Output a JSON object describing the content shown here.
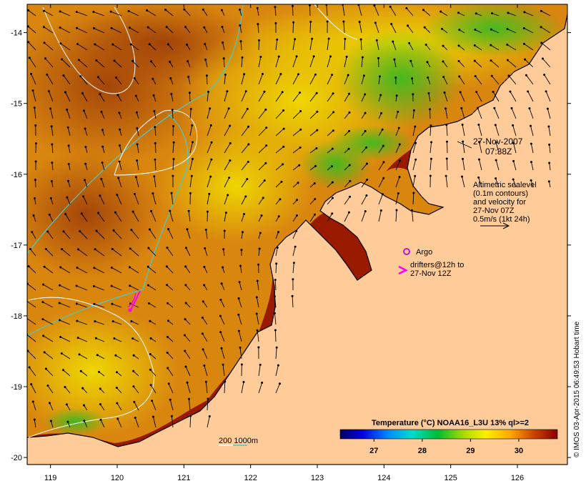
{
  "map": {
    "lon_ticks": [
      119,
      120,
      121,
      122,
      123,
      124,
      125,
      126
    ],
    "lat_ticks": [
      -14,
      -15,
      -16,
      -17,
      -18,
      -19,
      -20
    ],
    "lon_range": [
      118.65,
      126.75
    ],
    "lat_range": [
      -20.1,
      -13.6
    ],
    "colors": {
      "land": "#ffcc99",
      "coast": "#000000",
      "isobath_200": "#ffffff",
      "isobath_1000": "#44cccc",
      "drifter": "#ff00ff",
      "vector": "#000000"
    }
  },
  "annotations": {
    "date": "27-Nov-2007",
    "time": "07:38Z",
    "altimetry": [
      "Altimetric sealevel",
      "(0.1m contours)",
      "and velocity for",
      "27-Nov 07Z",
      "0.5m/s (1kt 24h)"
    ],
    "argo_label": "Argo",
    "drifters": [
      "drifters@12h to",
      "27-Nov 12Z"
    ],
    "isobath_label": "200  1000m",
    "credit": "© IMOS 03-Apr-2015 06:49:53 Hobart time"
  },
  "colorbar": {
    "title": "Temperature (°C) NOAA16_L3U 13% ql>=2",
    "range": [
      26.3,
      30.8
    ],
    "ticks": [
      27,
      28,
      29,
      30
    ]
  }
}
